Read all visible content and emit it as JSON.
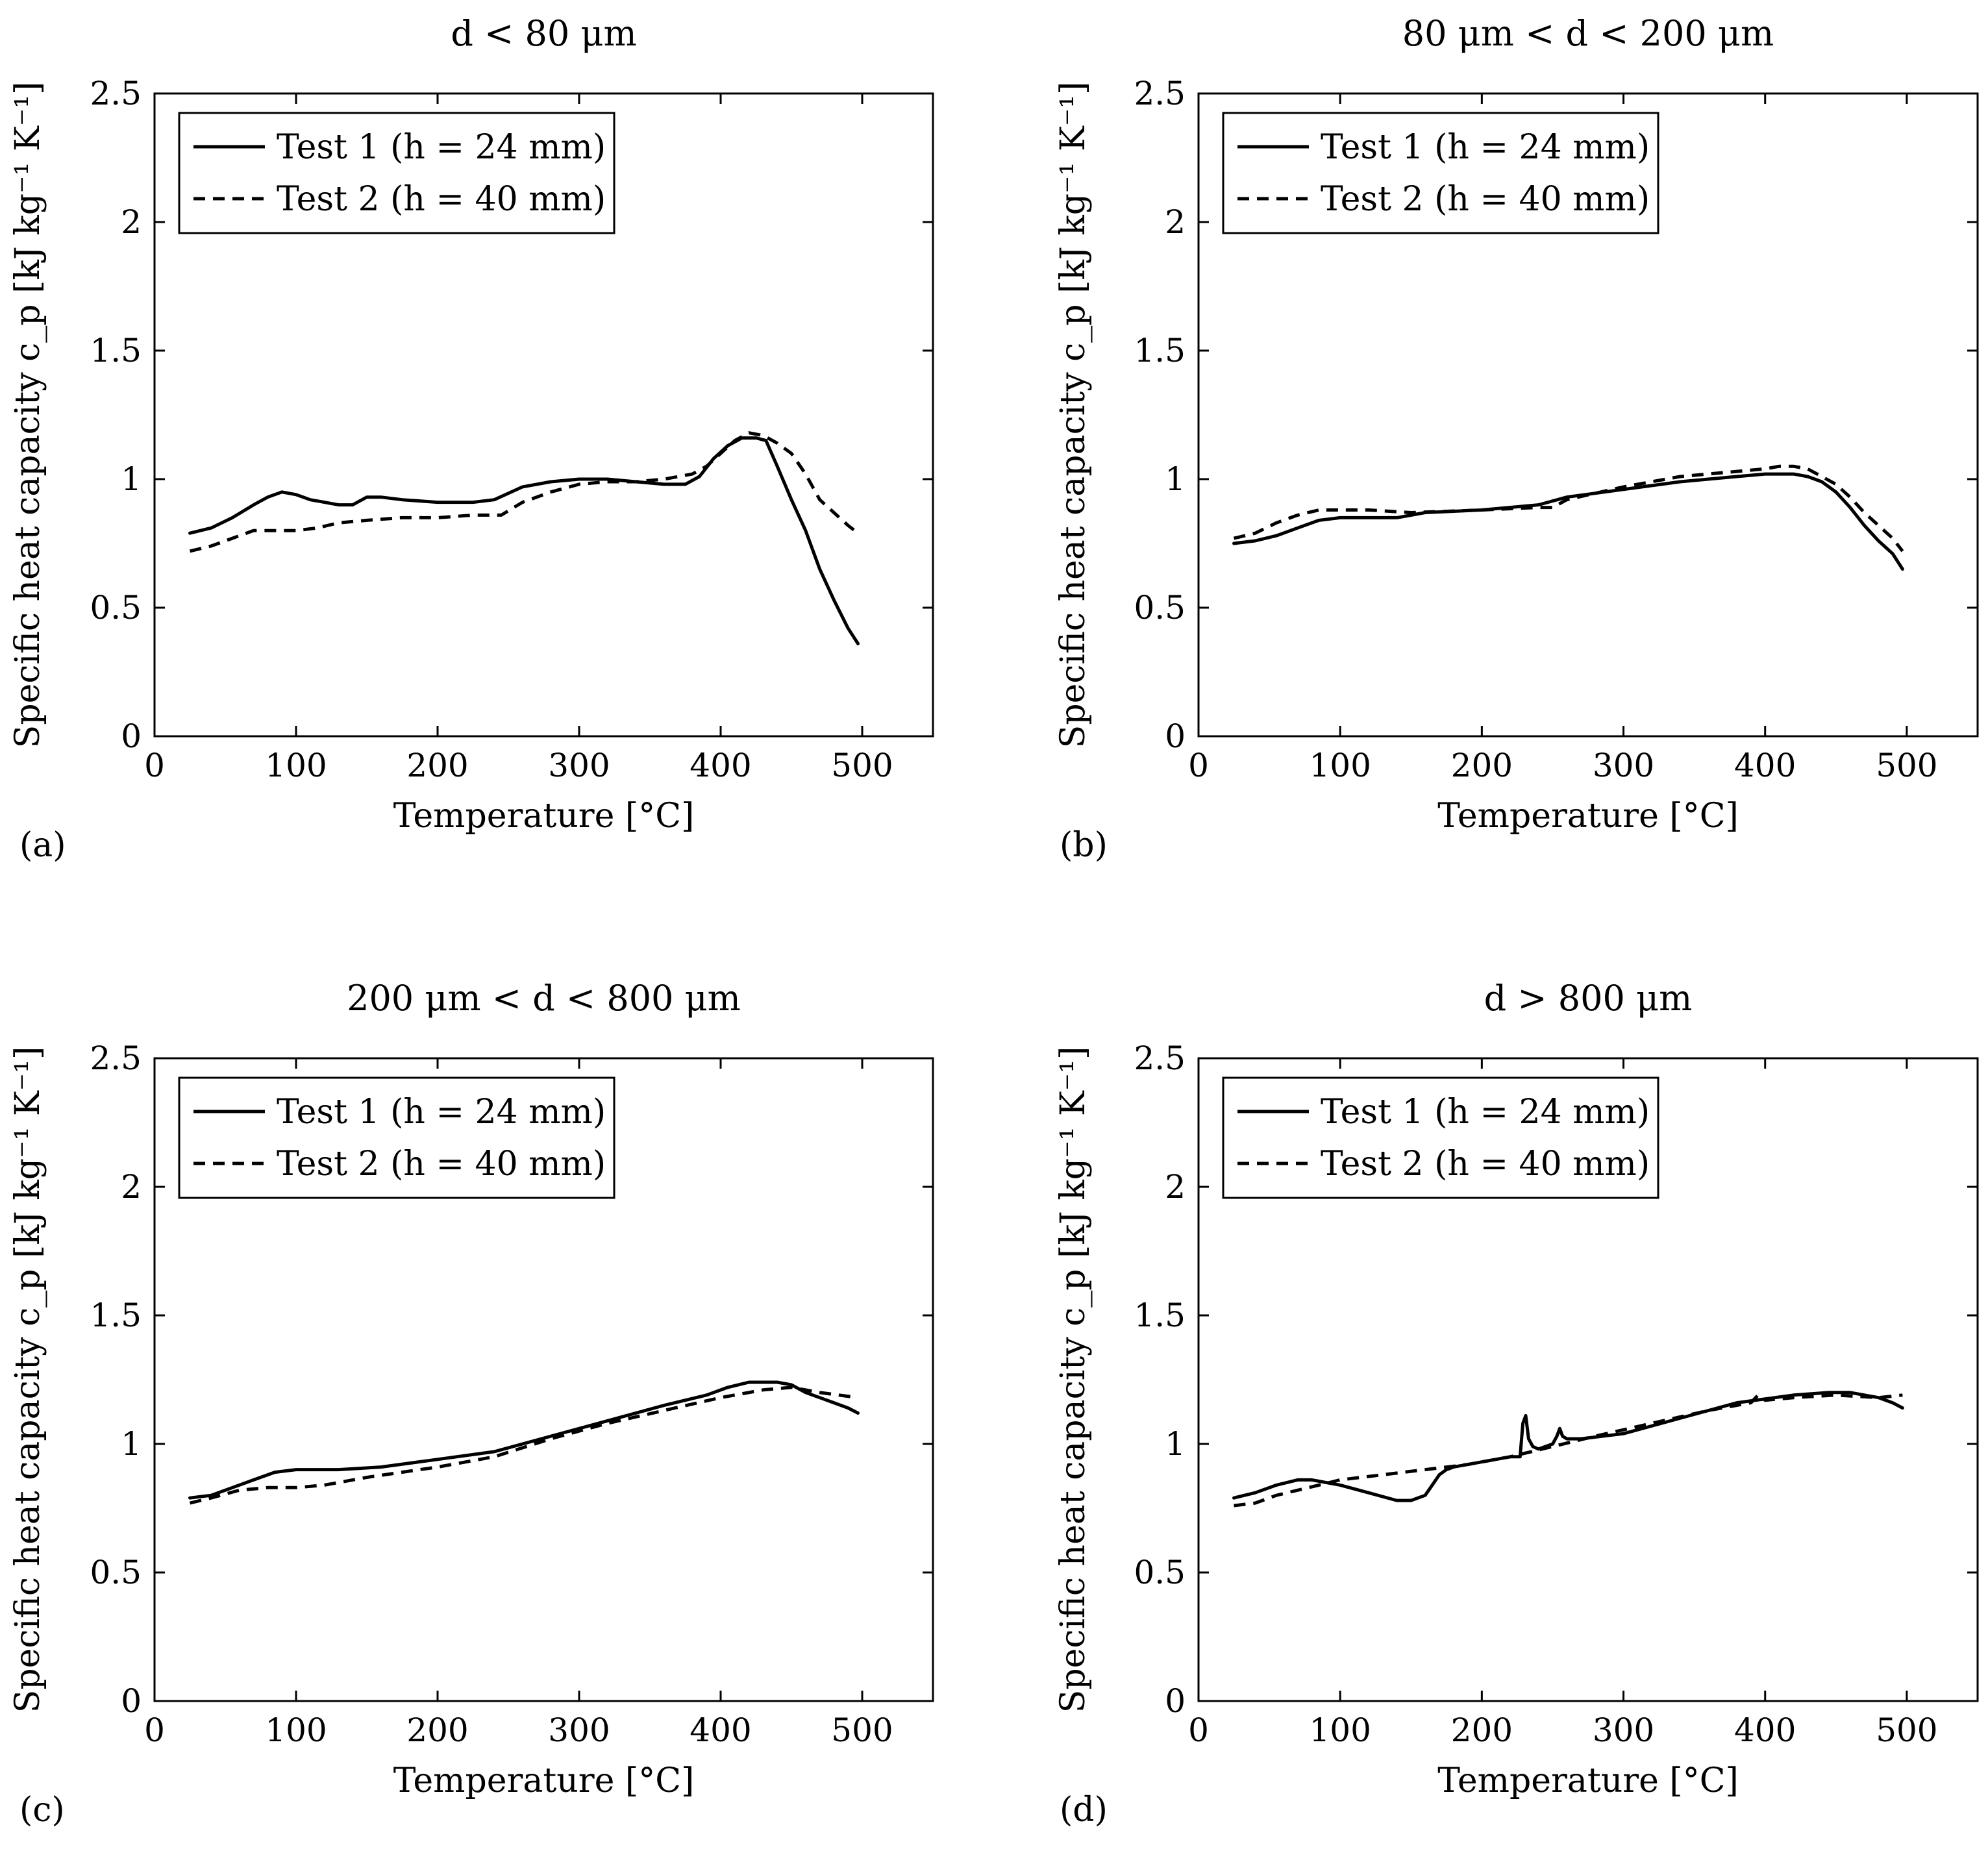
{
  "colors": {
    "line": "#000000",
    "background": "#ffffff"
  },
  "chart_data": [
    {
      "type": "line",
      "panel_label": "(a)",
      "title": "d < 80 μm",
      "xlabel": "Temperature [°C]",
      "ylabel": "Specific heat capacity c_p [kJ kg⁻¹ K⁻¹]",
      "xlim": [
        0,
        550
      ],
      "ylim": [
        0,
        2.5
      ],
      "xticks": [
        "0",
        "100",
        "200",
        "300",
        "400",
        "500"
      ],
      "yticks": [
        "0",
        "0.5",
        "1",
        "1.5",
        "2",
        "2.5"
      ],
      "legend_position": "top-left",
      "series": [
        {
          "name": "Test 1 (h = 24 mm)",
          "style": "solid",
          "x": [
            25,
            40,
            55,
            70,
            80,
            90,
            100,
            110,
            120,
            130,
            140,
            150,
            160,
            175,
            200,
            225,
            240,
            260,
            280,
            300,
            320,
            340,
            360,
            375,
            385,
            395,
            405,
            415,
            425,
            432,
            440,
            450,
            460,
            470,
            480,
            490,
            497
          ],
          "y": [
            0.79,
            0.81,
            0.85,
            0.9,
            0.93,
            0.95,
            0.94,
            0.92,
            0.91,
            0.9,
            0.9,
            0.93,
            0.93,
            0.92,
            0.91,
            0.91,
            0.92,
            0.97,
            0.99,
            1.0,
            1.0,
            0.99,
            0.98,
            0.98,
            1.01,
            1.08,
            1.13,
            1.16,
            1.16,
            1.15,
            1.05,
            0.92,
            0.8,
            0.65,
            0.53,
            0.42,
            0.36
          ]
        },
        {
          "name": "Test 2 (h = 40 mm)",
          "style": "dashed",
          "x": [
            25,
            40,
            55,
            70,
            85,
            100,
            115,
            130,
            150,
            175,
            200,
            225,
            245,
            260,
            280,
            300,
            320,
            340,
            360,
            380,
            390,
            400,
            410,
            420,
            430,
            440,
            450,
            460,
            470,
            480,
            490,
            497
          ],
          "y": [
            0.72,
            0.74,
            0.77,
            0.8,
            0.8,
            0.8,
            0.81,
            0.83,
            0.84,
            0.85,
            0.85,
            0.86,
            0.86,
            0.91,
            0.95,
            0.98,
            0.99,
            0.99,
            1.0,
            1.02,
            1.05,
            1.1,
            1.15,
            1.18,
            1.17,
            1.14,
            1.1,
            1.02,
            0.92,
            0.87,
            0.82,
            0.79
          ]
        }
      ]
    },
    {
      "type": "line",
      "panel_label": "(b)",
      "title": "80 μm < d < 200 μm",
      "xlabel": "Temperature [°C]",
      "ylabel": "Specific heat capacity c_p [kJ kg⁻¹ K⁻¹]",
      "xlim": [
        0,
        550
      ],
      "ylim": [
        0,
        2.5
      ],
      "xticks": [
        "0",
        "100",
        "200",
        "300",
        "400",
        "500"
      ],
      "yticks": [
        "0",
        "0.5",
        "1",
        "1.5",
        "2",
        "2.5"
      ],
      "legend_position": "top-left",
      "series": [
        {
          "name": "Test 1 (h = 24 mm)",
          "style": "solid",
          "x": [
            25,
            40,
            55,
            70,
            85,
            100,
            120,
            140,
            160,
            200,
            240,
            260,
            300,
            340,
            380,
            400,
            410,
            420,
            430,
            440,
            450,
            460,
            470,
            480,
            490,
            497
          ],
          "y": [
            0.75,
            0.76,
            0.78,
            0.81,
            0.84,
            0.85,
            0.85,
            0.85,
            0.87,
            0.88,
            0.9,
            0.93,
            0.96,
            0.99,
            1.01,
            1.02,
            1.02,
            1.02,
            1.01,
            0.99,
            0.95,
            0.89,
            0.82,
            0.76,
            0.71,
            0.65
          ]
        },
        {
          "name": "Test 2 (h = 40 mm)",
          "style": "dashed",
          "x": [
            25,
            40,
            55,
            70,
            85,
            100,
            120,
            150,
            200,
            240,
            250,
            260,
            300,
            340,
            380,
            400,
            410,
            420,
            430,
            440,
            450,
            460,
            470,
            480,
            490,
            497
          ],
          "y": [
            0.77,
            0.79,
            0.83,
            0.86,
            0.88,
            0.88,
            0.88,
            0.87,
            0.88,
            0.89,
            0.89,
            0.92,
            0.97,
            1.01,
            1.03,
            1.04,
            1.05,
            1.05,
            1.04,
            1.01,
            0.98,
            0.93,
            0.87,
            0.82,
            0.77,
            0.72
          ]
        }
      ]
    },
    {
      "type": "line",
      "panel_label": "(c)",
      "title": "200 μm < d < 800 μm",
      "xlabel": "Temperature [°C]",
      "ylabel": "Specific heat capacity c_p [kJ kg⁻¹ K⁻¹]",
      "xlim": [
        0,
        550
      ],
      "ylim": [
        0,
        2.5
      ],
      "xticks": [
        "0",
        "100",
        "200",
        "300",
        "400",
        "500"
      ],
      "yticks": [
        "0",
        "0.5",
        "1",
        "1.5",
        "2",
        "2.5"
      ],
      "legend_position": "top-left",
      "series": [
        {
          "name": "Test 1 (h = 24 mm)",
          "style": "solid",
          "x": [
            25,
            40,
            55,
            70,
            85,
            100,
            130,
            160,
            200,
            240,
            280,
            320,
            360,
            390,
            405,
            420,
            440,
            450,
            460,
            470,
            480,
            490,
            497
          ],
          "y": [
            0.79,
            0.8,
            0.83,
            0.86,
            0.89,
            0.9,
            0.9,
            0.91,
            0.94,
            0.97,
            1.03,
            1.09,
            1.15,
            1.19,
            1.22,
            1.24,
            1.24,
            1.23,
            1.2,
            1.18,
            1.16,
            1.14,
            1.12
          ]
        },
        {
          "name": "Test 2 (h = 40 mm)",
          "style": "dashed",
          "x": [
            25,
            40,
            60,
            80,
            100,
            120,
            150,
            200,
            240,
            280,
            320,
            360,
            400,
            430,
            450,
            470,
            497
          ],
          "y": [
            0.77,
            0.79,
            0.82,
            0.83,
            0.83,
            0.84,
            0.87,
            0.91,
            0.95,
            1.02,
            1.08,
            1.13,
            1.18,
            1.21,
            1.22,
            1.2,
            1.18
          ]
        }
      ]
    },
    {
      "type": "line",
      "panel_label": "(d)",
      "title": "d > 800 μm",
      "xlabel": "Temperature [°C]",
      "ylabel": "Specific heat capacity c_p [kJ kg⁻¹ K⁻¹]",
      "xlim": [
        0,
        550
      ],
      "ylim": [
        0,
        2.5
      ],
      "xticks": [
        "0",
        "100",
        "200",
        "300",
        "400",
        "500"
      ],
      "yticks": [
        "0",
        "0.5",
        "1",
        "1.5",
        "2",
        "2.5"
      ],
      "legend_position": "top-left",
      "series": [
        {
          "name": "Test 1 (h = 24 mm)",
          "style": "solid",
          "x": [
            25,
            40,
            55,
            70,
            80,
            90,
            100,
            120,
            140,
            150,
            160,
            165,
            170,
            175,
            180,
            200,
            220,
            227,
            229,
            231,
            233,
            236,
            240,
            245,
            250,
            253,
            255,
            257,
            260,
            270,
            300,
            340,
            380,
            420,
            445,
            460,
            480,
            490,
            497
          ],
          "y": [
            0.79,
            0.81,
            0.84,
            0.86,
            0.86,
            0.85,
            0.84,
            0.81,
            0.78,
            0.78,
            0.8,
            0.84,
            0.88,
            0.9,
            0.91,
            0.93,
            0.95,
            0.95,
            1.08,
            1.11,
            1.02,
            0.99,
            0.98,
            0.99,
            1.0,
            1.03,
            1.06,
            1.03,
            1.02,
            1.02,
            1.04,
            1.1,
            1.16,
            1.19,
            1.2,
            1.2,
            1.18,
            1.16,
            1.14
          ]
        },
        {
          "name": "Test 2 (h = 40 mm)",
          "style": "dashed",
          "x": [
            25,
            40,
            55,
            70,
            85,
            100,
            130,
            160,
            190,
            220,
            250,
            280,
            320,
            360,
            390,
            395,
            400,
            420,
            450,
            480,
            497
          ],
          "y": [
            0.76,
            0.77,
            0.8,
            0.82,
            0.84,
            0.86,
            0.88,
            0.9,
            0.92,
            0.95,
            0.99,
            1.03,
            1.08,
            1.13,
            1.16,
            1.19,
            1.17,
            1.18,
            1.19,
            1.18,
            1.19
          ]
        }
      ]
    }
  ]
}
